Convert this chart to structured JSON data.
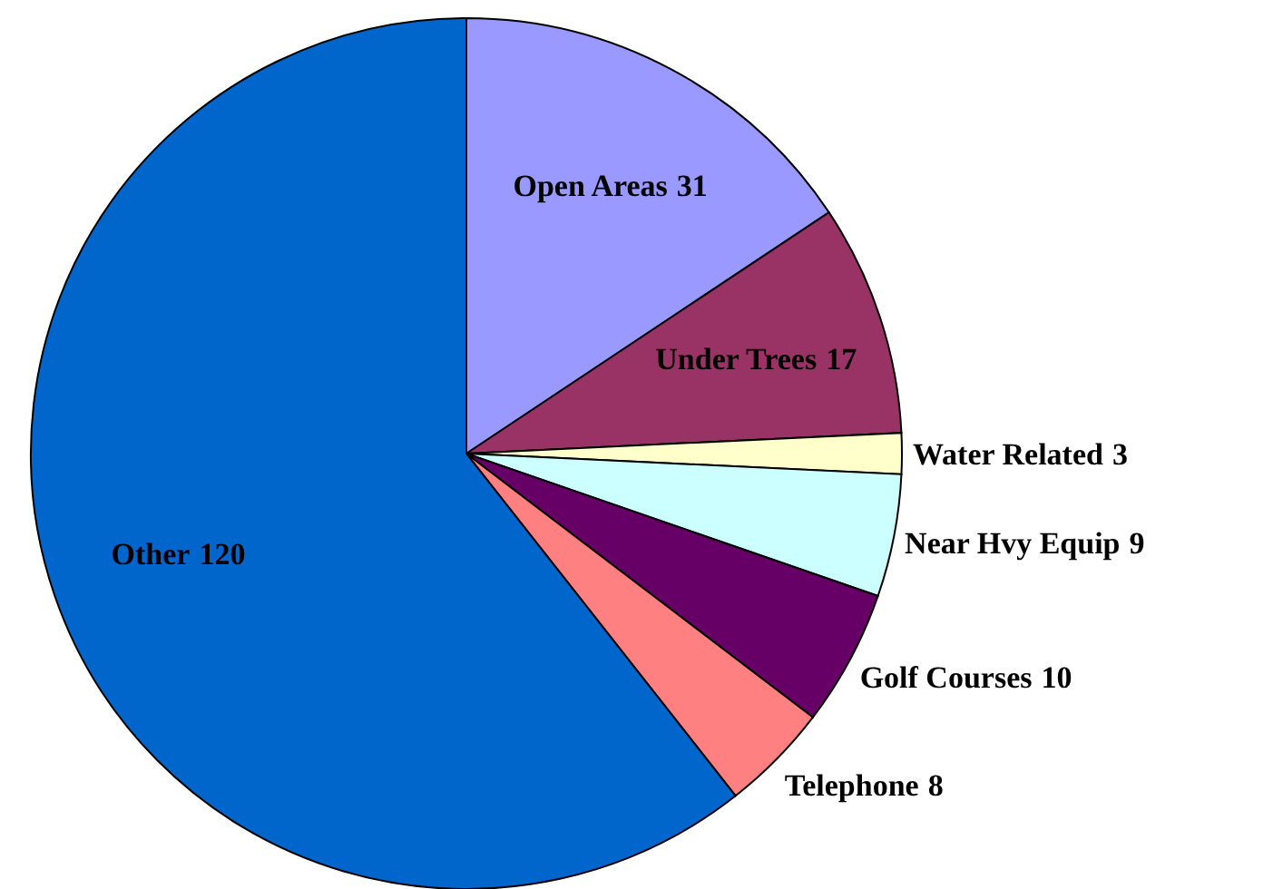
{
  "chart_data": {
    "type": "pie",
    "data_labels": true,
    "categories": [
      "Open Areas",
      "Under Trees",
      "Water Related",
      "Near Hvy Equip",
      "Golf Courses",
      "Telephone",
      "Other"
    ],
    "values": [
      31,
      17,
      3,
      9,
      10,
      8,
      120
    ],
    "colors": [
      "#9999ff",
      "#993366",
      "#ffffcc",
      "#ccffff",
      "#660066",
      "#ff8080",
      "#0066cc"
    ]
  }
}
